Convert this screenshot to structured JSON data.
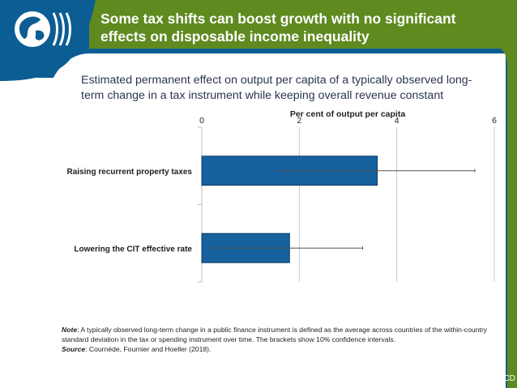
{
  "header": {
    "title_line1": "Some tax shifts can boost growth with no significant",
    "title_line2": "effects on disposable income inequality"
  },
  "subtitle": {
    "line1": "Estimated permanent effect on output per capita of a typically observed long-",
    "line2": "term change in a tax instrument while keeping overall revenue constant"
  },
  "chart_data": {
    "type": "bar",
    "orientation": "horizontal",
    "title": "Per cent of output per capita",
    "axis_position": "top",
    "xlim": [
      0,
      6
    ],
    "xticks": [
      0,
      2,
      4,
      6
    ],
    "xtick_labels": [
      "0",
      "2",
      "4",
      "6"
    ],
    "gridlines": true,
    "categories": [
      "Raising recurrent property taxes",
      "Lowering the CIT effective rate"
    ],
    "values": [
      3.6,
      1.8
    ],
    "error_low": [
      1.6,
      0.25
    ],
    "error_high": [
      5.6,
      3.3
    ],
    "bar_color": "#17619e",
    "error_note": "10% confidence intervals"
  },
  "note": {
    "label": "Note",
    "text": ": A typically observed long-term change in a public finance instrument is defined as the average across countries of the within-country standard deviation in the tax or spending instrument over time. The brackets show 10% confidence intervals.",
    "source_label": "Source",
    "source_text": ": Cournède, Fournier and Hoeller (2018)."
  },
  "footer": {
    "logo_text": "OECD"
  },
  "colors": {
    "header_blue": "#0d5d95",
    "header_green": "#5e8a1f",
    "bar": "#17619e",
    "grid": "#c8c8c8"
  }
}
